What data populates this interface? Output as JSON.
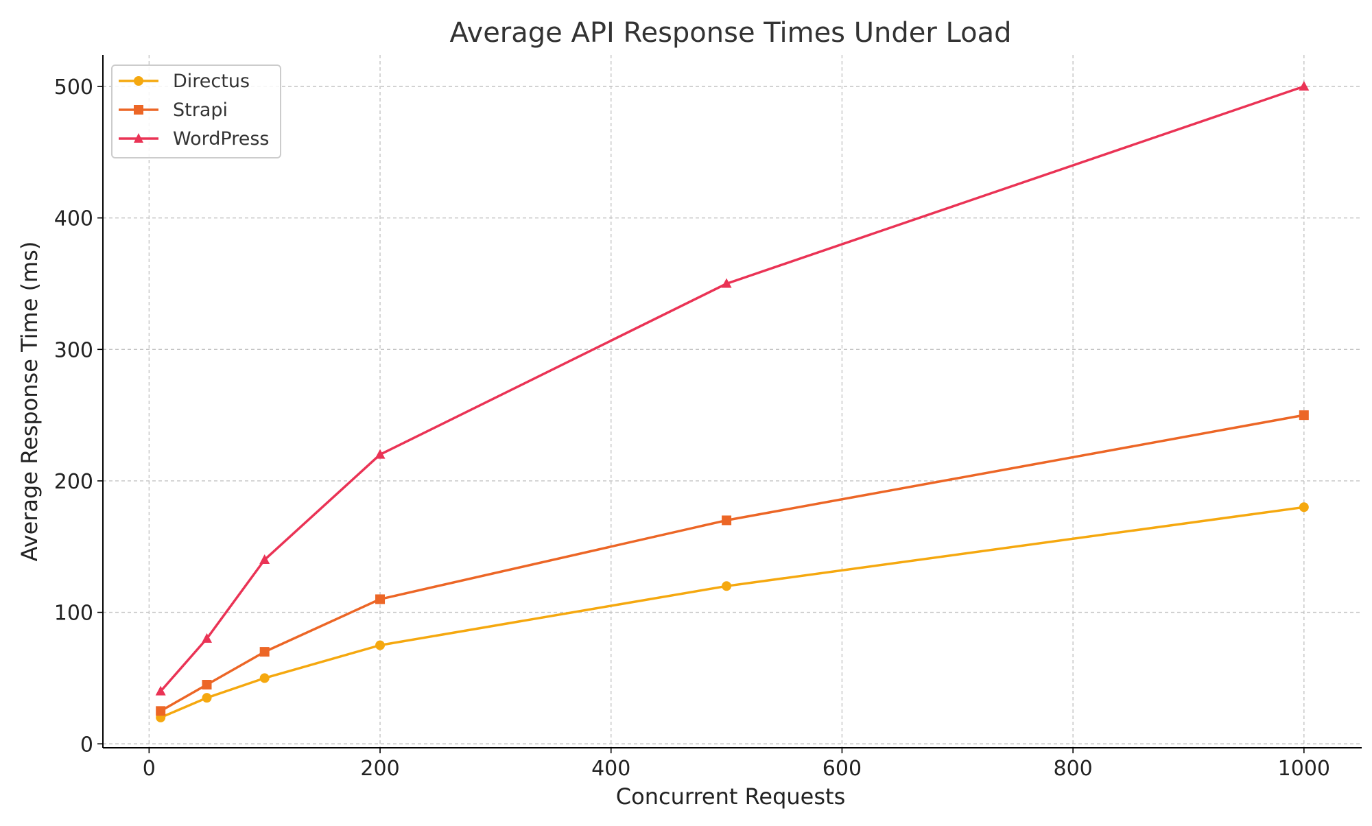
{
  "chart_data": {
    "type": "line",
    "title": "Average API Response Times Under Load",
    "xlabel": "Concurrent Requests",
    "ylabel": "Average Response Time (ms)",
    "xlim": [
      -40,
      1050
    ],
    "ylim": [
      -3,
      524
    ],
    "x_ticks": [
      0,
      200,
      400,
      600,
      800,
      1000
    ],
    "y_ticks": [
      0,
      100,
      200,
      300,
      400,
      500
    ],
    "grid": true,
    "legend_position": "upper-left",
    "x": [
      10,
      50,
      100,
      200,
      500,
      1000
    ],
    "series": [
      {
        "name": "Directus",
        "values": [
          20,
          35,
          50,
          75,
          120,
          180
        ],
        "color": "#f5a80f",
        "marker": "circle"
      },
      {
        "name": "Strapi",
        "values": [
          25,
          45,
          70,
          110,
          170,
          250
        ],
        "color": "#ec6626",
        "marker": "square"
      },
      {
        "name": "WordPress",
        "values": [
          40,
          80,
          140,
          220,
          350,
          500
        ],
        "color": "#ea3355",
        "marker": "triangle"
      }
    ]
  }
}
